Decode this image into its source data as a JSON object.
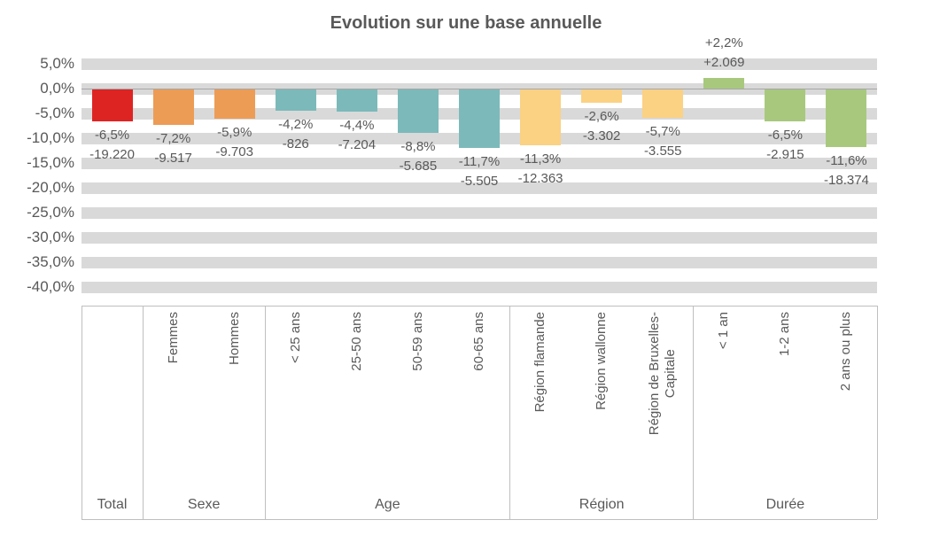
{
  "chart_data": {
    "type": "bar",
    "title": "Evolution sur une base annuelle",
    "xlabel": "",
    "ylabel": "",
    "ylim": [
      -40,
      5
    ],
    "grid": "horizontal-stripes",
    "legend": "none",
    "yticks": [
      {
        "value": 5,
        "label": "5,0%"
      },
      {
        "value": 0,
        "label": "0,0%"
      },
      {
        "value": -5,
        "label": "-5,0%"
      },
      {
        "value": -10,
        "label": "-10,0%"
      },
      {
        "value": -15,
        "label": "-15,0%"
      },
      {
        "value": -20,
        "label": "-20,0%"
      },
      {
        "value": -25,
        "label": "-25,0%"
      },
      {
        "value": -30,
        "label": "-30,0%"
      },
      {
        "value": -35,
        "label": "-35,0%"
      },
      {
        "value": -40,
        "label": "-40,0%"
      }
    ],
    "groups": [
      {
        "label": "Total",
        "color": "#DD2423",
        "bars": [
          {
            "category": null,
            "value_pct": -6.5,
            "value_abs": -19220,
            "label_pct": "-6,5%",
            "label_abs": "-19.220"
          }
        ]
      },
      {
        "label": "Sexe",
        "color": "#ED9C55",
        "bars": [
          {
            "category": "Femmes",
            "value_pct": -7.2,
            "value_abs": -9517,
            "label_pct": "-7,2%",
            "label_abs": "-9.517"
          },
          {
            "category": "Hommes",
            "value_pct": -5.9,
            "value_abs": -9703,
            "label_pct": "-5,9%",
            "label_abs": "-9.703"
          }
        ]
      },
      {
        "label": "Age",
        "color": "#7CB9BA",
        "bars": [
          {
            "category": "< 25 ans",
            "value_pct": -4.2,
            "value_abs": -826,
            "label_pct": "-4,2%",
            "label_abs": "-826"
          },
          {
            "category": "25-50 ans",
            "value_pct": -4.4,
            "value_abs": -7204,
            "label_pct": "-4,4%",
            "label_abs": "-7.204"
          },
          {
            "category": "50-59 ans",
            "value_pct": -8.8,
            "value_abs": -5685,
            "label_pct": "-8,8%",
            "label_abs": "-5.685"
          },
          {
            "category": "60-65 ans",
            "value_pct": -11.7,
            "value_abs": -5505,
            "label_pct": "-11,7%",
            "label_abs": "-5.505"
          }
        ]
      },
      {
        "label": "Région",
        "color": "#FBD183",
        "bars": [
          {
            "category": "Région flamande",
            "value_pct": -11.3,
            "value_abs": -12363,
            "label_pct": "-11,3%",
            "label_abs": "-12.363"
          },
          {
            "category": "Région wallonne",
            "value_pct": -2.6,
            "value_abs": -3302,
            "label_pct": "-2,6%",
            "label_abs": "-3.302"
          },
          {
            "category": "Région de Bruxelles-\nCapitale",
            "value_pct": -5.7,
            "value_abs": -3555,
            "label_pct": "-5,7%",
            "label_abs": "-3.555"
          }
        ]
      },
      {
        "label": "Durée",
        "color": "#A8C97D",
        "bars": [
          {
            "category": "< 1 an",
            "value_pct": 2.2,
            "value_abs": 2069,
            "label_pct": "+2,2%",
            "label_abs": "+2.069"
          },
          {
            "category": "1-2 ans",
            "value_pct": -6.5,
            "value_abs": -2915,
            "label_pct": "-6,5%",
            "label_abs": "-2.915"
          },
          {
            "category": "2 ans ou plus",
            "value_pct": -11.6,
            "value_abs": -18374,
            "label_pct": "-11,6%",
            "label_abs": "-18.374"
          }
        ]
      }
    ]
  },
  "colors": {
    "stripe": "#D9D9D9",
    "axis_line": "#BFBFBF",
    "zero_line": "#A6A6A6",
    "text": "#595959"
  }
}
